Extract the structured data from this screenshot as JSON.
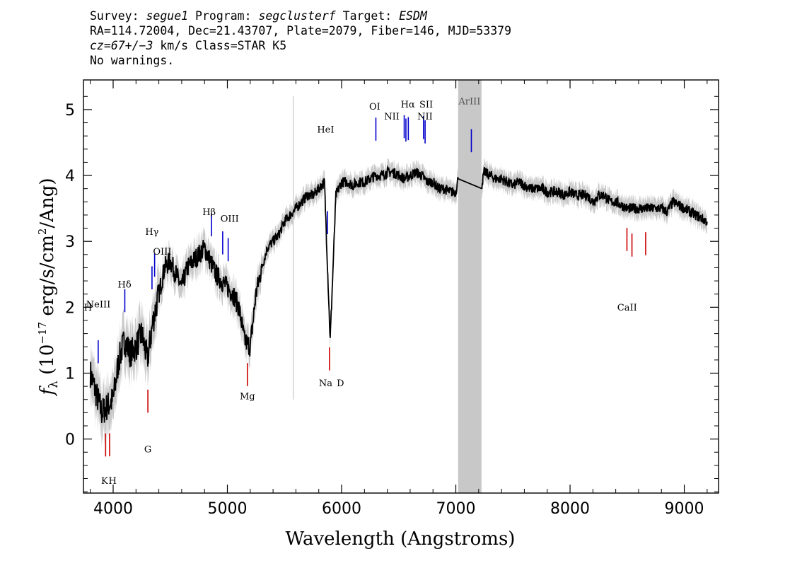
{
  "header": {
    "line1": {
      "survey_label": "Survey: ",
      "survey": "segue1",
      "program_label": " Program: ",
      "program": "segclusterf",
      "target_label": " Target: ",
      "target": "ESDM"
    },
    "line2": "RA=114.72004, Dec=21.43707, Plate=2079, Fiber=146, MJD=53379",
    "line3": {
      "cz_label": "cz=",
      "cz_value": "67+/−3",
      "cz_rest": " km/s Class=STAR K5"
    },
    "line4": "No warnings."
  },
  "chart_data": {
    "type": "line",
    "xlabel": "Wavelength (Angstroms)",
    "ylabel": {
      "symbol": "f",
      "subscript": "λ",
      "prefix": " (10",
      "exponent": "−17",
      "middle": " erg/s/cm",
      "exponent2": "2",
      "suffix": "/Ang)"
    },
    "xlim": [
      3740,
      9300
    ],
    "ylim": [
      -0.82,
      5.45
    ],
    "xticks": [
      {
        "value": 4000,
        "label": "4000"
      },
      {
        "value": 5000,
        "label": "5000"
      },
      {
        "value": 6000,
        "label": "6000"
      },
      {
        "value": 7000,
        "label": "7000"
      },
      {
        "value": 8000,
        "label": "8000"
      },
      {
        "value": 9000,
        "label": "9000"
      }
    ],
    "yticks": [
      {
        "value": 0,
        "label": "0"
      },
      {
        "value": 1,
        "label": "1"
      },
      {
        "value": 2,
        "label": "2"
      },
      {
        "value": 3,
        "label": "3"
      },
      {
        "value": 4,
        "label": "4"
      },
      {
        "value": 5,
        "label": "5"
      }
    ],
    "masked_region": [
      7020,
      7225
    ],
    "colors": {
      "spectrum": "#000000",
      "noise_band": "#c8c8c8",
      "mask": "#c8c8c8",
      "emission": "#0000cc",
      "absorption": "#cc0000",
      "masked_label": "#555555"
    },
    "series": [
      {
        "role": "flux",
        "x": [
          3800,
          3850,
          3900,
          3950,
          4000,
          4050,
          4100,
          4150,
          4200,
          4250,
          4300,
          4350,
          4400,
          4450,
          4500,
          4550,
          4600,
          4650,
          4700,
          4750,
          4800,
          4850,
          4900,
          4950,
          5000,
          5050,
          5100,
          5150,
          5200,
          5250,
          5300,
          5350,
          5400,
          5450,
          5500,
          5550,
          5600,
          5650,
          5700,
          5750,
          5800,
          5850,
          5900,
          5950,
          6000,
          6050,
          6100,
          6150,
          6200,
          6250,
          6300,
          6350,
          6400,
          6450,
          6500,
          6550,
          6600,
          6650,
          6700,
          6750,
          6800,
          6850,
          6900,
          6950,
          7000,
          7020,
          7225,
          7250,
          7300,
          7350,
          7400,
          7450,
          7500,
          7550,
          7600,
          7650,
          7700,
          7750,
          7800,
          7850,
          7900,
          7950,
          8000,
          8050,
          8100,
          8150,
          8200,
          8250,
          8300,
          8350,
          8400,
          8450,
          8500,
          8550,
          8600,
          8650,
          8700,
          8750,
          8800,
          8850,
          8900,
          8950,
          9000,
          9050,
          9100,
          9150,
          9200
        ],
        "y": [
          1.0,
          0.7,
          0.4,
          0.5,
          0.6,
          1.2,
          1.5,
          1.3,
          1.4,
          1.6,
          1.2,
          1.8,
          2.2,
          2.6,
          2.7,
          2.5,
          2.3,
          2.6,
          2.7,
          2.8,
          2.9,
          2.7,
          2.5,
          2.4,
          2.3,
          2.2,
          2.0,
          1.5,
          1.4,
          2.2,
          2.6,
          2.9,
          3.0,
          3.1,
          3.3,
          3.4,
          3.5,
          3.6,
          3.7,
          3.7,
          3.8,
          3.9,
          1.5,
          3.7,
          3.9,
          3.9,
          3.85,
          3.9,
          3.9,
          3.95,
          4.0,
          4.0,
          4.05,
          4.05,
          4.0,
          3.95,
          4.0,
          4.05,
          4.0,
          3.9,
          3.9,
          3.8,
          3.8,
          3.75,
          3.75,
          3.95,
          3.85,
          4.05,
          4.0,
          3.95,
          3.95,
          3.9,
          3.85,
          3.9,
          3.85,
          3.8,
          3.8,
          3.8,
          3.75,
          3.75,
          3.75,
          3.7,
          3.75,
          3.7,
          3.7,
          3.7,
          3.6,
          3.7,
          3.7,
          3.6,
          3.6,
          3.55,
          3.5,
          3.5,
          3.5,
          3.5,
          3.5,
          3.5,
          3.5,
          3.45,
          3.6,
          3.55,
          3.5,
          3.45,
          3.4,
          3.35,
          3.3
        ]
      }
    ],
    "emission_lines": [
      {
        "label": "NeIII",
        "x": 3869
      },
      {
        "label": "Hδ",
        "x": 4102
      },
      {
        "label": "Hγ",
        "x": 4340
      },
      {
        "label": "OIII",
        "x": 4363
      },
      {
        "label": "Hβ",
        "x": 4861
      },
      {
        "label": "OIII",
        "x": 4959
      },
      {
        "label": "OIII",
        "x": 5007
      },
      {
        "label": "HeI",
        "x": 5876
      },
      {
        "label": "OI",
        "x": 6300
      },
      {
        "label": "NII",
        "x": 6548
      },
      {
        "label": "Hα",
        "x": 6563
      },
      {
        "label": "NII",
        "x": 6584
      },
      {
        "label": "SII",
        "x": 6717
      },
      {
        "label": "SII",
        "x": 6731
      },
      {
        "label": "ArIII",
        "x": 7136
      }
    ],
    "absorption_lines": [
      {
        "label": "K",
        "x": 3934
      },
      {
        "label": "H",
        "x": 3969
      },
      {
        "label": "G",
        "x": 4304
      },
      {
        "label": "Mg",
        "x": 5175
      },
      {
        "label": "Na D",
        "x": 5894
      },
      {
        "label": "CaII",
        "x": 8498
      },
      {
        "label": "CaII",
        "x": 8542
      },
      {
        "label": "CaII",
        "x": 8662
      }
    ],
    "line_label_texts": [
      {
        "text": "H",
        "x": 3780,
        "y": 1.95,
        "color": "emission"
      },
      {
        "text": "NeIII",
        "x": 3870,
        "y": 2.0,
        "color": "emission"
      },
      {
        "text": "Hδ",
        "x": 4100,
        "y": 2.3,
        "color": "emission"
      },
      {
        "text": "Hγ",
        "x": 4340,
        "y": 3.1,
        "color": "emission"
      },
      {
        "text": "OIII",
        "x": 4430,
        "y": 2.8,
        "color": "emission"
      },
      {
        "text": "Hβ",
        "x": 4840,
        "y": 3.4,
        "color": "emission"
      },
      {
        "text": "OIII",
        "x": 5020,
        "y": 3.3,
        "color": "emission"
      },
      {
        "text": "HeI",
        "x": 5860,
        "y": 4.65,
        "color": "emission"
      },
      {
        "text": "OI",
        "x": 6290,
        "y": 5.0,
        "color": "emission"
      },
      {
        "text": "NII",
        "x": 6440,
        "y": 4.85,
        "color": "emission"
      },
      {
        "text": "Hα",
        "x": 6580,
        "y": 5.03,
        "color": "emission"
      },
      {
        "text": "SII",
        "x": 6740,
        "y": 5.03,
        "color": "emission"
      },
      {
        "text": "NII",
        "x": 6730,
        "y": 4.85,
        "color": "emission"
      },
      {
        "text": "ArIII",
        "x": 7120,
        "y": 5.08,
        "color": "masked_label"
      },
      {
        "text": "K",
        "x": 3925,
        "y": -0.68,
        "color": "absorption"
      },
      {
        "text": "H",
        "x": 3995,
        "y": -0.68,
        "color": "absorption"
      },
      {
        "text": "G",
        "x": 4304,
        "y": -0.2,
        "color": "absorption"
      },
      {
        "text": "Mg",
        "x": 5175,
        "y": 0.6,
        "color": "absorption"
      },
      {
        "text": "Na",
        "x": 5860,
        "y": 0.8,
        "color": "absorption"
      },
      {
        "text": "D",
        "x": 5990,
        "y": 0.8,
        "color": "absorption"
      },
      {
        "text": "CaII",
        "x": 8500,
        "y": 1.95,
        "color": "absorption"
      }
    ]
  }
}
